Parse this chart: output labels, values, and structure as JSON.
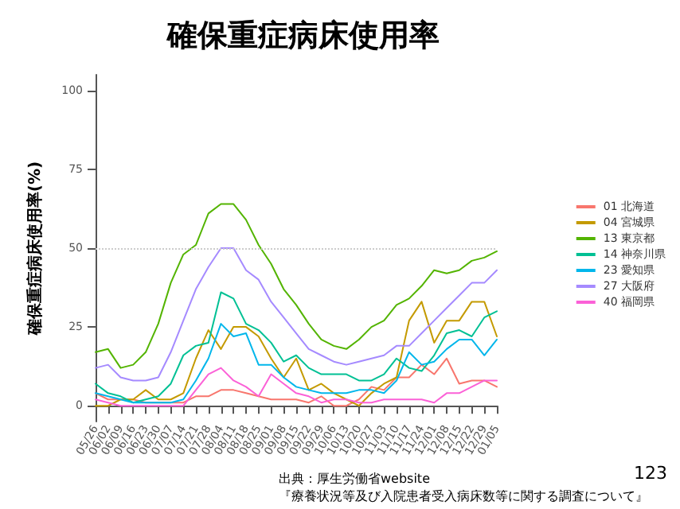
{
  "chart_data": {
    "type": "line",
    "title": "確保重症病床使用率",
    "ylabel": "確保重症病床使用率(%)",
    "categories": [
      "05/26",
      "06/02",
      "06/09",
      "06/16",
      "06/23",
      "06/30",
      "07/07",
      "07/14",
      "07/21",
      "07/28",
      "08/04",
      "08/11",
      "08/18",
      "08/25",
      "09/01",
      "09/08",
      "09/15",
      "09/22",
      "09/29",
      "10/06",
      "10/13",
      "10/20",
      "10/27",
      "11/03",
      "11/10",
      "11/17",
      "11/24",
      "12/01",
      "12/08",
      "12/15",
      "12/22",
      "12/29",
      "01/05"
    ],
    "series": [
      {
        "name": "01 北海道",
        "color": "#f8766d",
        "values": [
          4,
          2,
          2,
          2,
          1,
          1,
          1,
          1,
          3,
          3,
          5,
          5,
          4,
          3,
          2,
          2,
          2,
          1,
          3,
          0,
          0,
          2,
          6,
          5,
          9,
          9,
          13,
          10,
          15,
          7,
          8,
          8,
          6
        ]
      },
      {
        "name": "04 宮城県",
        "color": "#c49a00",
        "values": [
          0,
          0,
          2,
          2,
          5,
          2,
          2,
          4,
          15,
          24,
          18,
          25,
          25,
          22,
          15,
          9,
          15,
          5,
          7,
          4,
          2,
          0,
          4,
          7,
          9,
          27,
          33,
          20,
          27,
          27,
          33,
          33,
          22
        ]
      },
      {
        "name": "13 東京都",
        "color": "#53b400",
        "values": [
          17,
          18,
          12,
          13,
          17,
          26,
          39,
          48,
          51,
          61,
          64,
          64,
          59,
          51,
          45,
          37,
          32,
          26,
          21,
          19,
          18,
          21,
          25,
          27,
          32,
          34,
          38,
          43,
          42,
          43,
          46,
          47,
          49
        ]
      },
      {
        "name": "14 神奈川県",
        "color": "#00c094",
        "values": [
          7,
          4,
          3,
          1,
          2,
          3,
          7,
          16,
          19,
          20,
          36,
          34,
          26,
          24,
          20,
          14,
          16,
          12,
          10,
          10,
          10,
          8,
          8,
          10,
          15,
          12,
          11,
          16,
          23,
          24,
          22,
          28,
          30
        ]
      },
      {
        "name": "23 愛知県",
        "color": "#00b6eb",
        "values": [
          4,
          3,
          2,
          1,
          1,
          1,
          1,
          2,
          8,
          15,
          26,
          22,
          23,
          13,
          13,
          9,
          6,
          5,
          4,
          4,
          4,
          5,
          5,
          4,
          8,
          17,
          13,
          14,
          18,
          21,
          21,
          16,
          21
        ]
      },
      {
        "name": "27 大阪府",
        "color": "#a58aff",
        "values": [
          12,
          13,
          9,
          8,
          8,
          9,
          17,
          27,
          37,
          44,
          50,
          50,
          43,
          40,
          33,
          28,
          23,
          18,
          16,
          14,
          13,
          14,
          15,
          16,
          19,
          19,
          23,
          27,
          31,
          35,
          39,
          39,
          43
        ]
      },
      {
        "name": "40 福岡県",
        "color": "#fb61d7",
        "values": [
          2,
          1,
          0,
          0,
          0,
          0,
          0,
          0,
          5,
          10,
          12,
          8,
          6,
          3,
          10,
          7,
          4,
          3,
          1,
          2,
          2,
          1,
          1,
          2,
          2,
          2,
          2,
          1,
          4,
          4,
          6,
          8,
          8
        ]
      }
    ],
    "ylim": [
      -5,
      105
    ],
    "yticks": [
      0,
      25,
      50,
      75,
      100
    ],
    "grid": false,
    "legend": "right",
    "marker": "none",
    "line_style": "solid",
    "ref_lines": [
      {
        "axis": "y",
        "value": 50,
        "label": null,
        "color": "#cccccc",
        "line_style": "dotted"
      }
    ],
    "annotations": [
      "出典：厚生労働省website",
      "『療養状況等及び入院患者受入病床数等に関する調査について』",
      "123"
    ]
  }
}
